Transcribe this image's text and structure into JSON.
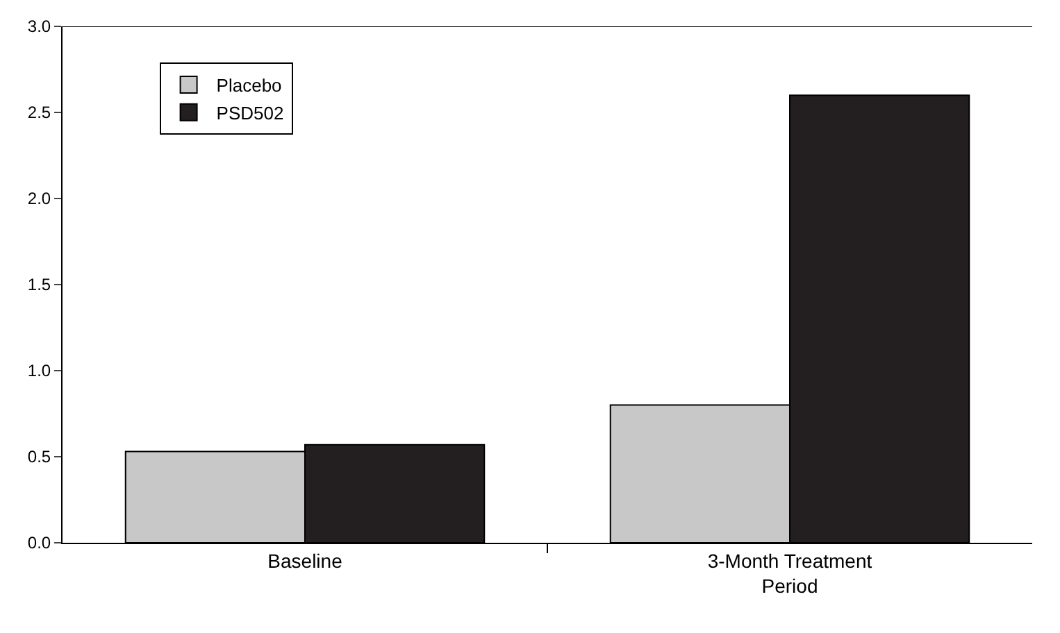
{
  "chart_data": {
    "type": "bar",
    "categories": [
      "Baseline",
      "3-Month Treatment Period"
    ],
    "series": [
      {
        "name": "Placebo",
        "color": "#c8c8c8",
        "values": [
          0.53,
          0.8
        ]
      },
      {
        "name": "PSD502",
        "color": "#231f20",
        "values": [
          0.57,
          2.6
        ]
      }
    ],
    "ylim": [
      0,
      3.0
    ],
    "yticks": [
      {
        "value": 0,
        "label": "0.0"
      },
      0.5,
      {
        "value": 1,
        "label": "1.0"
      },
      1.5,
      {
        "value": 2,
        "label": "2.0"
      },
      2.5,
      {
        "value": 3,
        "label": "3.0"
      }
    ],
    "legend": "top left"
  }
}
